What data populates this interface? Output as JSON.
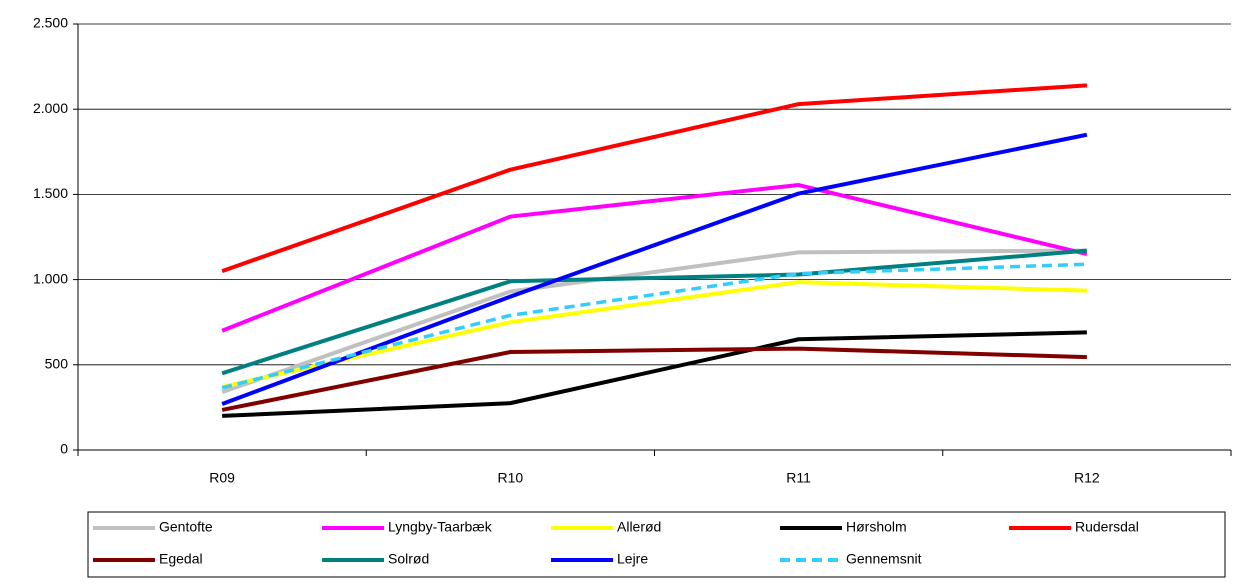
{
  "chart_data": {
    "type": "line",
    "categories": [
      "R09",
      "R10",
      "R11",
      "R12"
    ],
    "series": [
      {
        "name": "Gentofte",
        "color": "#c0c0c0",
        "values": [
          340,
          930,
          1160,
          1170
        ]
      },
      {
        "name": "Lyngby-Taarbæk",
        "color": "#ff00ff",
        "values": [
          700,
          1370,
          1555,
          1150
        ]
      },
      {
        "name": "Allerød",
        "color": "#ffff00",
        "values": [
          370,
          750,
          985,
          935
        ]
      },
      {
        "name": "Hørsholm",
        "color": "#000000",
        "values": [
          200,
          275,
          650,
          690
        ]
      },
      {
        "name": "Rudersdal",
        "color": "#ff0000",
        "values": [
          1050,
          1645,
          2030,
          2140
        ]
      },
      {
        "name": "Egedal",
        "color": "#800000",
        "values": [
          235,
          575,
          595,
          545
        ]
      },
      {
        "name": "Solrød",
        "color": "#008080",
        "values": [
          450,
          990,
          1030,
          1170
        ]
      },
      {
        "name": "Lejre",
        "color": "#0000ff",
        "values": [
          270,
          900,
          1505,
          1850
        ]
      },
      {
        "name": "Gennemsnit",
        "color": "#33ccff",
        "style": "dashed",
        "values": [
          365,
          790,
          1035,
          1090
        ]
      }
    ],
    "ylim": [
      0,
      2500
    ],
    "yticks": [
      0,
      500,
      {
        "value": 1000,
        "label": "1.000"
      },
      {
        "value": 1500,
        "label": "1.500"
      },
      {
        "value": 2000,
        "label": "2.000"
      },
      {
        "value": 2500,
        "label": "2.500"
      }
    ],
    "grid": true,
    "legend": "bottom"
  }
}
